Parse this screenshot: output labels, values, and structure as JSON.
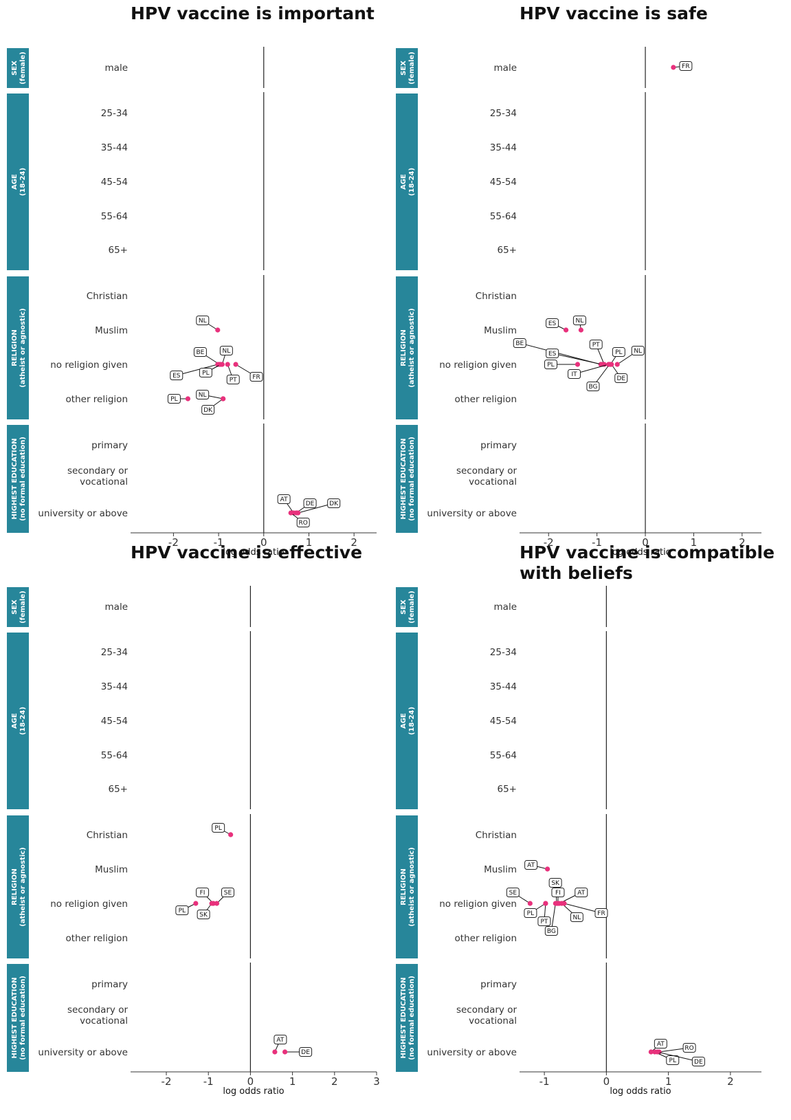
{
  "chart_data": [
    {
      "type": "scatter",
      "title_lines": [
        "HPV vaccine is important"
      ],
      "xlabel": "log odds ratio",
      "xlim": [
        -2.95,
        2.5
      ],
      "xticks": [
        -2,
        -1,
        0,
        1,
        2
      ],
      "points": [
        {
          "row": "Muslim",
          "x": -1.02,
          "label": "NL"
        },
        {
          "row": "no religion given",
          "x": -0.98,
          "label": "BE"
        },
        {
          "row": "no religion given",
          "x": -0.92,
          "label": "NL"
        },
        {
          "row": "no religion given",
          "x": -1.02,
          "label": "ES"
        },
        {
          "row": "no religion given",
          "x": -0.95,
          "label": "PL"
        },
        {
          "row": "no religion given",
          "x": -0.8,
          "label": "PT"
        },
        {
          "row": "no religion given",
          "x": -0.62,
          "label": "FR"
        },
        {
          "row": "other religion",
          "x": -1.68,
          "label": "PL"
        },
        {
          "row": "other religion",
          "x": -0.9,
          "label": "NL"
        },
        {
          "row": "other religion",
          "x": -0.9,
          "label": "DK"
        },
        {
          "row": "university or above",
          "x": 0.66,
          "label": "AT"
        },
        {
          "row": "university or above",
          "x": 0.72,
          "label": "DE"
        },
        {
          "row": "university or above",
          "x": 0.76,
          "label": "DK"
        },
        {
          "row": "university or above",
          "x": 0.6,
          "label": "RO"
        }
      ]
    },
    {
      "type": "scatter",
      "title_lines": [
        "HPV vaccine is safe"
      ],
      "xlabel": "log odds ratio",
      "xlim": [
        -2.6,
        2.4
      ],
      "xticks": [
        -2,
        -1,
        0,
        1,
        2
      ],
      "points": [
        {
          "row": "male",
          "x": 0.58,
          "label": "FR"
        },
        {
          "row": "Muslim",
          "x": -1.64,
          "label": "ES"
        },
        {
          "row": "Muslim",
          "x": -1.33,
          "label": "NL"
        },
        {
          "row": "no religion given",
          "x": -0.92,
          "label": "BE"
        },
        {
          "row": "no religion given",
          "x": -0.85,
          "label": "PT"
        },
        {
          "row": "no religion given",
          "x": -0.9,
          "label": "ES"
        },
        {
          "row": "no religion given",
          "x": -0.72,
          "label": "PL"
        },
        {
          "row": "no religion given",
          "x": -0.58,
          "label": "NL"
        },
        {
          "row": "no religion given",
          "x": -1.4,
          "label": "PL"
        },
        {
          "row": "no religion given",
          "x": -0.76,
          "label": "IT"
        },
        {
          "row": "no religion given",
          "x": -0.7,
          "label": "DE"
        },
        {
          "row": "no religion given",
          "x": -0.74,
          "label": "BG"
        }
      ]
    },
    {
      "type": "scatter",
      "title_lines": [
        "HPV vaccine is effective"
      ],
      "xlabel": "log odds ratio",
      "xlim": [
        -2.85,
        3.0
      ],
      "xticks": [
        -2,
        -1,
        0,
        1,
        2,
        3
      ],
      "points": [
        {
          "row": "Christian",
          "x": -0.47,
          "label": "PL"
        },
        {
          "row": "no religion given",
          "x": -0.88,
          "label": "FI"
        },
        {
          "row": "no religion given",
          "x": -0.8,
          "label": "SE"
        },
        {
          "row": "no religion given",
          "x": -1.3,
          "label": "PL"
        },
        {
          "row": "no religion given",
          "x": -0.92,
          "label": "SK"
        },
        {
          "row": "university or above",
          "x": 0.58,
          "label": "AT"
        },
        {
          "row": "university or above",
          "x": 0.82,
          "label": "DE"
        }
      ]
    },
    {
      "type": "scatter",
      "title_lines": [
        "HPV vaccine is compatible",
        "with beliefs"
      ],
      "xlabel": "log odds ratio",
      "xlim": [
        -1.4,
        2.5
      ],
      "xticks": [
        -1,
        0,
        1,
        2
      ],
      "points": [
        {
          "row": "Muslim",
          "x": -0.95,
          "label": "AT"
        },
        {
          "row": "no religion given",
          "x": -0.8,
          "label": "SK"
        },
        {
          "row": "no religion given",
          "x": -0.78,
          "label": "FI"
        },
        {
          "row": "no religion given",
          "x": -0.76,
          "label": "AT"
        },
        {
          "row": "no religion given",
          "x": -1.23,
          "label": "SE"
        },
        {
          "row": "no religion given",
          "x": -0.98,
          "label": "PL"
        },
        {
          "row": "no religion given",
          "x": -0.98,
          "label": "PT"
        },
        {
          "row": "no religion given",
          "x": -0.82,
          "label": "BG"
        },
        {
          "row": "no religion given",
          "x": -0.72,
          "label": "NL"
        },
        {
          "row": "no religion given",
          "x": -0.68,
          "label": "FR"
        },
        {
          "row": "university or above",
          "x": 0.72,
          "label": "AT"
        },
        {
          "row": "university or above",
          "x": 0.85,
          "label": "RO"
        },
        {
          "row": "university or above",
          "x": 0.78,
          "label": "PL"
        },
        {
          "row": "university or above",
          "x": 0.82,
          "label": "DE"
        }
      ]
    }
  ],
  "groups": [
    {
      "lines": [
        "SEX",
        "(female)"
      ],
      "rows": [
        "male"
      ]
    },
    {
      "lines": [
        "AGE",
        "(18-24)"
      ],
      "rows": [
        "25-34",
        "35-44",
        "45-54",
        "55-64",
        "65+"
      ]
    },
    {
      "lines": [
        "RELIGION",
        "(atheist or agnostic)"
      ],
      "rows": [
        "Christian",
        "Muslim",
        "no religion given",
        "other religion"
      ]
    },
    {
      "lines": [
        "HIGHEST EDUCATION",
        "(no formal education)"
      ],
      "rows": [
        "primary",
        "secondary or vocational",
        "university or above"
      ]
    }
  ],
  "colors": {
    "point": "#e8317c",
    "group_band": "#27869a",
    "zero_line": "#222222",
    "label_border": "#222222"
  }
}
